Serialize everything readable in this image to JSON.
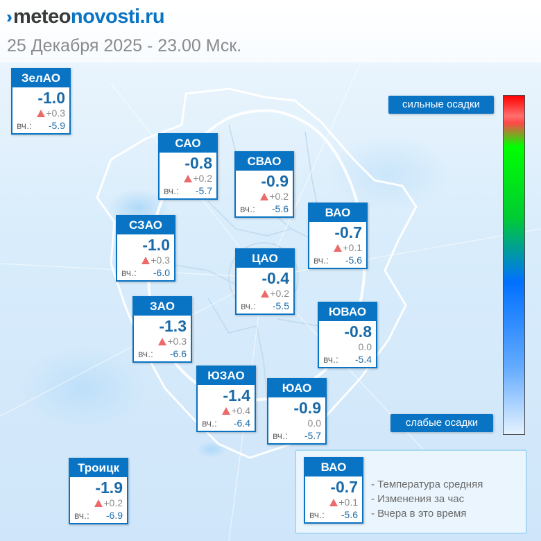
{
  "header": {
    "logo_part1": "meteo",
    "logo_part2": "novosti.ru",
    "datetime": "25 Декабря 2025 - 23.00 Мск."
  },
  "colors": {
    "brand_blue": "#0a74c4",
    "temp_blue": "#1a6aa8",
    "up_arrow": "#ec6a6a",
    "scale_top": "#ff0000",
    "scale_mid_green": "#00ff00",
    "scale_mid_blue": "#0070ff",
    "scale_bottom": "#e4f2ff"
  },
  "icons": {
    "trend_up": "triangle-up-icon"
  },
  "districts": [
    {
      "name": "ЗелАО",
      "temp": "-1.0",
      "trend": "up",
      "change": "+0.3",
      "yesterday_label": "вч.:",
      "yesterday": "-5.9"
    },
    {
      "name": "САО",
      "temp": "-0.8",
      "trend": "up",
      "change": "+0.2",
      "yesterday_label": "вч.:",
      "yesterday": "-5.7"
    },
    {
      "name": "СВАО",
      "temp": "-0.9",
      "trend": "up",
      "change": "+0.2",
      "yesterday_label": "вч.:",
      "yesterday": "-5.6"
    },
    {
      "name": "ВАО",
      "temp": "-0.7",
      "trend": "up",
      "change": "+0.1",
      "yesterday_label": "вч.:",
      "yesterday": "-5.6"
    },
    {
      "name": "СЗАО",
      "temp": "-1.0",
      "trend": "up",
      "change": "+0.3",
      "yesterday_label": "вч.:",
      "yesterday": "-6.0"
    },
    {
      "name": "ЦАО",
      "temp": "-0.4",
      "trend": "up",
      "change": "+0.2",
      "yesterday_label": "вч.:",
      "yesterday": "-5.5"
    },
    {
      "name": "ЗАО",
      "temp": "-1.3",
      "trend": "up",
      "change": "+0.3",
      "yesterday_label": "вч.:",
      "yesterday": "-6.6"
    },
    {
      "name": "ЮВАО",
      "temp": "-0.8",
      "trend": "none",
      "change": "0.0",
      "yesterday_label": "вч.:",
      "yesterday": "-5.4"
    },
    {
      "name": "ЮЗАО",
      "temp": "-1.4",
      "trend": "up",
      "change": "+0.4",
      "yesterday_label": "вч.:",
      "yesterday": "-6.4"
    },
    {
      "name": "ЮАО",
      "temp": "-0.9",
      "trend": "none",
      "change": "0.0",
      "yesterday_label": "вч.:",
      "yesterday": "-5.7"
    },
    {
      "name": "Троицк",
      "temp": "-1.9",
      "trend": "up",
      "change": "+0.2",
      "yesterday_label": "вч.:",
      "yesterday": "-6.9"
    }
  ],
  "precip_scale": {
    "top_label": "сильные осадки",
    "bottom_label": "слабые осадки"
  },
  "legend": {
    "sample": {
      "name": "ВАО",
      "temp": "-0.7",
      "trend": "up",
      "change": "+0.1",
      "yesterday_label": "вч.:",
      "yesterday": "-5.6"
    },
    "line1": "- Температура средняя",
    "line2": "- Изменения за час",
    "line3": "- Вчера в это время"
  }
}
